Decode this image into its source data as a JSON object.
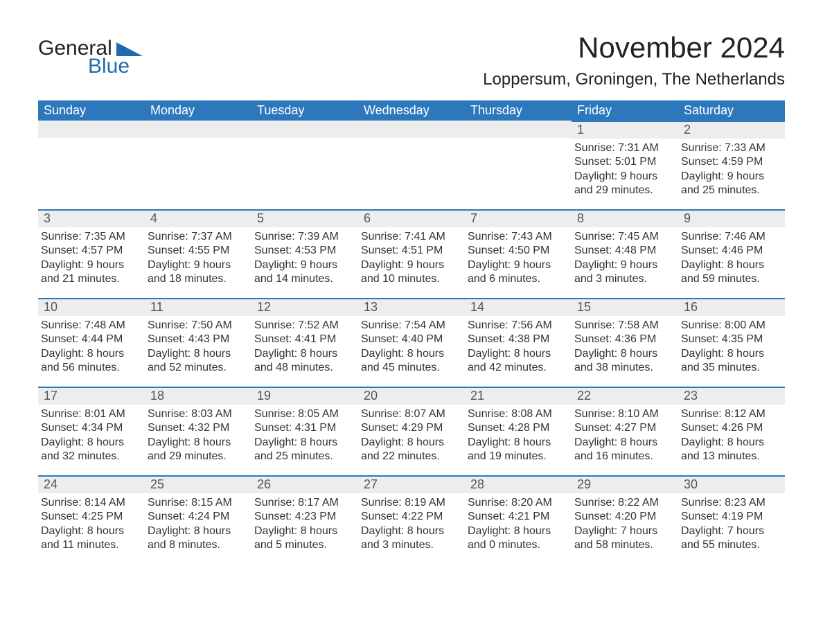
{
  "logo": {
    "text_general": "General",
    "text_blue": "Blue"
  },
  "title": "November 2024",
  "location": "Loppersum, Groningen, The Netherlands",
  "colors": {
    "header_bg": "#2d78bd",
    "header_text": "#ffffff",
    "day_bar_bg": "#ededed",
    "border": "#2d78bd",
    "text": "#333333",
    "logo_blue": "#1f6bb0"
  },
  "dayHeaders": [
    "Sunday",
    "Monday",
    "Tuesday",
    "Wednesday",
    "Thursday",
    "Friday",
    "Saturday"
  ],
  "weeks": [
    [
      null,
      null,
      null,
      null,
      null,
      {
        "n": "1",
        "sunrise": "Sunrise: 7:31 AM",
        "sunset": "Sunset: 5:01 PM",
        "daylight": "Daylight: 9 hours and 29 minutes."
      },
      {
        "n": "2",
        "sunrise": "Sunrise: 7:33 AM",
        "sunset": "Sunset: 4:59 PM",
        "daylight": "Daylight: 9 hours and 25 minutes."
      }
    ],
    [
      {
        "n": "3",
        "sunrise": "Sunrise: 7:35 AM",
        "sunset": "Sunset: 4:57 PM",
        "daylight": "Daylight: 9 hours and 21 minutes."
      },
      {
        "n": "4",
        "sunrise": "Sunrise: 7:37 AM",
        "sunset": "Sunset: 4:55 PM",
        "daylight": "Daylight: 9 hours and 18 minutes."
      },
      {
        "n": "5",
        "sunrise": "Sunrise: 7:39 AM",
        "sunset": "Sunset: 4:53 PM",
        "daylight": "Daylight: 9 hours and 14 minutes."
      },
      {
        "n": "6",
        "sunrise": "Sunrise: 7:41 AM",
        "sunset": "Sunset: 4:51 PM",
        "daylight": "Daylight: 9 hours and 10 minutes."
      },
      {
        "n": "7",
        "sunrise": "Sunrise: 7:43 AM",
        "sunset": "Sunset: 4:50 PM",
        "daylight": "Daylight: 9 hours and 6 minutes."
      },
      {
        "n": "8",
        "sunrise": "Sunrise: 7:45 AM",
        "sunset": "Sunset: 4:48 PM",
        "daylight": "Daylight: 9 hours and 3 minutes."
      },
      {
        "n": "9",
        "sunrise": "Sunrise: 7:46 AM",
        "sunset": "Sunset: 4:46 PM",
        "daylight": "Daylight: 8 hours and 59 minutes."
      }
    ],
    [
      {
        "n": "10",
        "sunrise": "Sunrise: 7:48 AM",
        "sunset": "Sunset: 4:44 PM",
        "daylight": "Daylight: 8 hours and 56 minutes."
      },
      {
        "n": "11",
        "sunrise": "Sunrise: 7:50 AM",
        "sunset": "Sunset: 4:43 PM",
        "daylight": "Daylight: 8 hours and 52 minutes."
      },
      {
        "n": "12",
        "sunrise": "Sunrise: 7:52 AM",
        "sunset": "Sunset: 4:41 PM",
        "daylight": "Daylight: 8 hours and 48 minutes."
      },
      {
        "n": "13",
        "sunrise": "Sunrise: 7:54 AM",
        "sunset": "Sunset: 4:40 PM",
        "daylight": "Daylight: 8 hours and 45 minutes."
      },
      {
        "n": "14",
        "sunrise": "Sunrise: 7:56 AM",
        "sunset": "Sunset: 4:38 PM",
        "daylight": "Daylight: 8 hours and 42 minutes."
      },
      {
        "n": "15",
        "sunrise": "Sunrise: 7:58 AM",
        "sunset": "Sunset: 4:36 PM",
        "daylight": "Daylight: 8 hours and 38 minutes."
      },
      {
        "n": "16",
        "sunrise": "Sunrise: 8:00 AM",
        "sunset": "Sunset: 4:35 PM",
        "daylight": "Daylight: 8 hours and 35 minutes."
      }
    ],
    [
      {
        "n": "17",
        "sunrise": "Sunrise: 8:01 AM",
        "sunset": "Sunset: 4:34 PM",
        "daylight": "Daylight: 8 hours and 32 minutes."
      },
      {
        "n": "18",
        "sunrise": "Sunrise: 8:03 AM",
        "sunset": "Sunset: 4:32 PM",
        "daylight": "Daylight: 8 hours and 29 minutes."
      },
      {
        "n": "19",
        "sunrise": "Sunrise: 8:05 AM",
        "sunset": "Sunset: 4:31 PM",
        "daylight": "Daylight: 8 hours and 25 minutes."
      },
      {
        "n": "20",
        "sunrise": "Sunrise: 8:07 AM",
        "sunset": "Sunset: 4:29 PM",
        "daylight": "Daylight: 8 hours and 22 minutes."
      },
      {
        "n": "21",
        "sunrise": "Sunrise: 8:08 AM",
        "sunset": "Sunset: 4:28 PM",
        "daylight": "Daylight: 8 hours and 19 minutes."
      },
      {
        "n": "22",
        "sunrise": "Sunrise: 8:10 AM",
        "sunset": "Sunset: 4:27 PM",
        "daylight": "Daylight: 8 hours and 16 minutes."
      },
      {
        "n": "23",
        "sunrise": "Sunrise: 8:12 AM",
        "sunset": "Sunset: 4:26 PM",
        "daylight": "Daylight: 8 hours and 13 minutes."
      }
    ],
    [
      {
        "n": "24",
        "sunrise": "Sunrise: 8:14 AM",
        "sunset": "Sunset: 4:25 PM",
        "daylight": "Daylight: 8 hours and 11 minutes."
      },
      {
        "n": "25",
        "sunrise": "Sunrise: 8:15 AM",
        "sunset": "Sunset: 4:24 PM",
        "daylight": "Daylight: 8 hours and 8 minutes."
      },
      {
        "n": "26",
        "sunrise": "Sunrise: 8:17 AM",
        "sunset": "Sunset: 4:23 PM",
        "daylight": "Daylight: 8 hours and 5 minutes."
      },
      {
        "n": "27",
        "sunrise": "Sunrise: 8:19 AM",
        "sunset": "Sunset: 4:22 PM",
        "daylight": "Daylight: 8 hours and 3 minutes."
      },
      {
        "n": "28",
        "sunrise": "Sunrise: 8:20 AM",
        "sunset": "Sunset: 4:21 PM",
        "daylight": "Daylight: 8 hours and 0 minutes."
      },
      {
        "n": "29",
        "sunrise": "Sunrise: 8:22 AM",
        "sunset": "Sunset: 4:20 PM",
        "daylight": "Daylight: 7 hours and 58 minutes."
      },
      {
        "n": "30",
        "sunrise": "Sunrise: 8:23 AM",
        "sunset": "Sunset: 4:19 PM",
        "daylight": "Daylight: 7 hours and 55 minutes."
      }
    ]
  ]
}
